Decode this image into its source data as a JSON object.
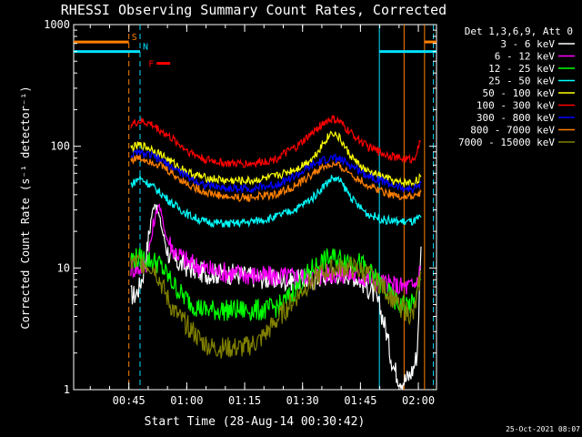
{
  "chart_data": {
    "type": "line",
    "title": "RHESSI Observing Summary Count Rates, Corrected",
    "ylabel": "Corrected Count Rate (s⁻¹ detector⁻¹)",
    "xlabel": "Start Time (28-Aug-14 00:30:42)",
    "x_unit": "minutes after 00:30:42 UT",
    "xlim": [
      0,
      94
    ],
    "ylim": [
      1,
      1000
    ],
    "y_scale": "log",
    "y_ticks": [
      {
        "value": 1,
        "label": "1"
      },
      {
        "value": 10,
        "label": "10"
      },
      {
        "value": 100,
        "label": "100"
      },
      {
        "value": 1000,
        "label": "1000"
      }
    ],
    "x_ticks": [
      {
        "value": 14.3,
        "label": "00:45"
      },
      {
        "value": 29.3,
        "label": "01:00"
      },
      {
        "value": 44.3,
        "label": "01:15"
      },
      {
        "value": 59.3,
        "label": "01:30"
      },
      {
        "value": 74.3,
        "label": "01:45"
      },
      {
        "value": 89.3,
        "label": "02:00"
      }
    ],
    "legend_title": "Det 1,3,6,9, Att 0",
    "legend_position": "right",
    "series": [
      {
        "name": "3 - 6 keV",
        "color": "#ffffff",
        "x": [
          14.8,
          16,
          17,
          18,
          19,
          20,
          21,
          22,
          23,
          24,
          25,
          27,
          30,
          34,
          40,
          46,
          52,
          58,
          62,
          65,
          68,
          71,
          73,
          74,
          75,
          76,
          77,
          78,
          79,
          80,
          81,
          82,
          83,
          84,
          85,
          86,
          87,
          88,
          89,
          90
        ],
        "y": [
          6,
          6,
          7,
          9,
          14,
          25,
          35,
          28,
          20,
          15,
          12,
          11,
          10,
          9,
          9,
          8.5,
          8,
          8,
          8,
          8.5,
          9,
          9,
          8.5,
          8,
          7.5,
          7,
          6.5,
          6,
          5,
          4,
          3,
          2,
          1.5,
          1.3,
          1.2,
          1.2,
          1.3,
          1.5,
          2,
          15
        ]
      },
      {
        "name": "6 - 12 keV",
        "color": "#ff00ff",
        "x": [
          14.8,
          17,
          19,
          21,
          22,
          23,
          24,
          26,
          30,
          36,
          42,
          50,
          56,
          62,
          66,
          70,
          74,
          78,
          80,
          84,
          88,
          89,
          90
        ],
        "y": [
          10,
          10,
          11,
          25,
          34,
          25,
          18,
          14,
          11,
          9.5,
          9,
          8.5,
          8.5,
          8.5,
          9,
          9,
          8.5,
          8,
          7.5,
          7,
          7,
          8,
          10
        ]
      },
      {
        "name": "12 - 25 keV",
        "color": "#00ff00",
        "x": [
          14.8,
          18,
          22,
          25,
          28,
          31,
          34,
          38,
          44,
          50,
          54,
          58,
          62,
          66,
          70,
          74,
          77,
          80,
          84,
          88,
          89,
          90
        ],
        "y": [
          12,
          12,
          11,
          8,
          6,
          5,
          4.5,
          4.5,
          4.5,
          4.5,
          5,
          7,
          10,
          12,
          12,
          11,
          9,
          7,
          5,
          5,
          6,
          8
        ]
      },
      {
        "name": "25 - 50 keV",
        "color": "#00ffff",
        "x": [
          14.8,
          17,
          20,
          23,
          26,
          30,
          34,
          40,
          46,
          52,
          58,
          62,
          65,
          67,
          69,
          71,
          73,
          76,
          80,
          84,
          88,
          90
        ],
        "y": [
          48,
          55,
          48,
          40,
          33,
          27,
          24,
          23,
          24,
          26,
          31,
          38,
          48,
          55,
          52,
          42,
          34,
          28,
          25,
          24,
          24,
          26
        ]
      },
      {
        "name": "50 - 100 keV",
        "color": "#ffff00",
        "x": [
          14.8,
          17,
          20,
          23,
          26,
          30,
          34,
          40,
          46,
          52,
          58,
          62,
          65,
          67,
          69,
          71,
          73,
          76,
          80,
          84,
          88,
          90
        ],
        "y": [
          96,
          102,
          96,
          84,
          72,
          60,
          55,
          52,
          52,
          56,
          66,
          80,
          110,
          132,
          115,
          90,
          75,
          62,
          56,
          50,
          50,
          56
        ]
      },
      {
        "name": "100 - 300 keV",
        "color": "#ff0000",
        "x": [
          14.8,
          17,
          20,
          23,
          26,
          30,
          34,
          40,
          46,
          52,
          58,
          62,
          65,
          67,
          69,
          71,
          73,
          76,
          80,
          84,
          88,
          90
        ],
        "y": [
          150,
          160,
          152,
          132,
          112,
          90,
          78,
          72,
          72,
          78,
          100,
          130,
          158,
          168,
          158,
          135,
          120,
          100,
          88,
          80,
          78,
          110
        ]
      },
      {
        "name": "300 - 800 keV",
        "color": "#0000ff",
        "x": [
          14.8,
          17,
          20,
          23,
          26,
          30,
          34,
          40,
          46,
          52,
          58,
          62,
          65,
          67,
          69,
          71,
          73,
          76,
          80,
          84,
          88,
          90
        ],
        "y": [
          84,
          88,
          84,
          75,
          66,
          55,
          48,
          45,
          45,
          48,
          58,
          70,
          77,
          80,
          78,
          72,
          66,
          58,
          52,
          46,
          44,
          50
        ]
      },
      {
        "name": "800 - 7000 keV",
        "color": "#ff8000",
        "x": [
          14.8,
          17,
          20,
          23,
          26,
          30,
          34,
          40,
          46,
          52,
          58,
          62,
          65,
          67,
          69,
          71,
          73,
          76,
          80,
          84,
          88,
          90
        ],
        "y": [
          78,
          80,
          76,
          68,
          58,
          48,
          42,
          38,
          38,
          40,
          48,
          60,
          68,
          70,
          68,
          62,
          56,
          48,
          43,
          39,
          38,
          42
        ]
      },
      {
        "name": "7000 - 15000 keV",
        "color": "#808000",
        "x": [
          14.8,
          18,
          21,
          23,
          25,
          27,
          29,
          31,
          33,
          36,
          40,
          44,
          48,
          52,
          56,
          60,
          64,
          68,
          72,
          76,
          80,
          84,
          88,
          89,
          90
        ],
        "y": [
          11,
          11,
          10,
          7,
          5,
          4,
          3.5,
          3,
          2.5,
          2.2,
          2.2,
          2.2,
          2.5,
          3.5,
          5,
          7,
          9,
          10,
          10,
          9,
          7,
          5,
          4,
          6,
          9
        ]
      }
    ],
    "vertical_lines": [
      {
        "x": 14.3,
        "color": "#ff8000",
        "style": "dashed"
      },
      {
        "x": 17.2,
        "color": "#00e0ff",
        "style": "dashed"
      },
      {
        "x": 85.6,
        "color": "#ff8000",
        "style": "solid"
      },
      {
        "x": 90.9,
        "color": "#ff8000",
        "style": "solid"
      },
      {
        "x": 79.2,
        "color": "#00e0ff",
        "style": "solid"
      },
      {
        "x": 93.2,
        "color": "#00e0ff",
        "style": "dashed"
      }
    ],
    "flag_bars": [
      {
        "label": "S",
        "color": "#ff8000",
        "x0": -6,
        "x1": 14.3,
        "y": 720
      },
      {
        "label": "N",
        "color": "#00e0ff",
        "x0": -6,
        "x1": 17.2,
        "y": 600
      },
      {
        "label": "F",
        "color": "#ff0000",
        "x0": 21.5,
        "x1": 25,
        "y": 480
      },
      {
        "label": "",
        "color": "#ff8000",
        "x0": 90.9,
        "x1": 97,
        "y": 720
      },
      {
        "label": "",
        "color": "#00e0ff",
        "x0": 79.2,
        "x1": 97,
        "y": 600
      }
    ]
  },
  "footer": {
    "date_stamp": "25-Oct-2021 08:07"
  }
}
